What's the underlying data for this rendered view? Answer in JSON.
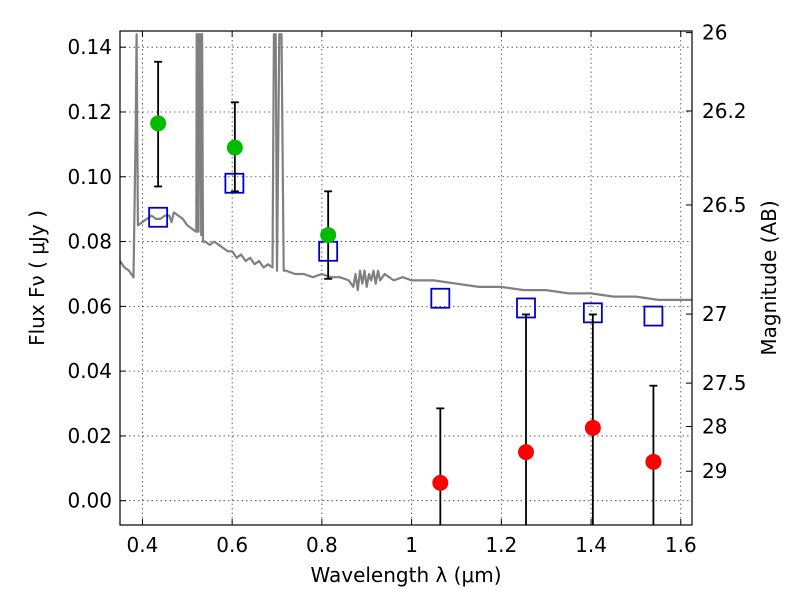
{
  "chart_data": {
    "type": "scatter",
    "xlabel": "Wavelength  λ (μm)",
    "ylabel": "Flux  Fν  ( μJy )",
    "ylabel_right": "Magnitude (AB)",
    "xlim": [
      0.35,
      1.625
    ],
    "ylim": [
      -0.0075,
      0.145
    ],
    "grid": true,
    "x_ticks": [
      0.4,
      0.6,
      0.8,
      1.0,
      1.2,
      1.4,
      1.6
    ],
    "x_tick_labels": [
      "0.4",
      "0.6",
      "0.8",
      "1",
      "1.2",
      "1.4",
      "1.6"
    ],
    "y_ticks": [
      0.0,
      0.02,
      0.04,
      0.06,
      0.08,
      0.1,
      0.12,
      0.14
    ],
    "y_tick_labels": [
      "0.00",
      "0.02",
      "0.04",
      "0.06",
      "0.08",
      "0.10",
      "0.12",
      "0.14"
    ],
    "right_ticks": [
      {
        "label": "26",
        "flux": 0.1445
      },
      {
        "label": "26.2",
        "flux": 0.1203
      },
      {
        "label": "26.5",
        "flux": 0.0913
      },
      {
        "label": "27",
        "flux": 0.0576
      },
      {
        "label": "27.5",
        "flux": 0.0363
      },
      {
        "label": "28",
        "flux": 0.0229
      },
      {
        "label": "29",
        "flux": 0.0091
      }
    ],
    "model_spectrum": {
      "color": "#808080",
      "points": [
        [
          0.35,
          0.074
        ],
        [
          0.36,
          0.072
        ],
        [
          0.37,
          0.071
        ],
        [
          0.375,
          0.07
        ],
        [
          0.38,
          0.069
        ],
        [
          0.385,
          0.115
        ],
        [
          0.387,
          0.144
        ],
        [
          0.39,
          0.085
        ],
        [
          0.4,
          0.086
        ],
        [
          0.41,
          0.087
        ],
        [
          0.42,
          0.088
        ],
        [
          0.43,
          0.087
        ],
        [
          0.44,
          0.087
        ],
        [
          0.45,
          0.088
        ],
        [
          0.46,
          0.088
        ],
        [
          0.465,
          0.086
        ],
        [
          0.47,
          0.089
        ],
        [
          0.48,
          0.088
        ],
        [
          0.49,
          0.087
        ],
        [
          0.5,
          0.085
        ],
        [
          0.51,
          0.084
        ],
        [
          0.52,
          0.083
        ],
        [
          0.521,
          0.144
        ],
        [
          0.523,
          0.144
        ],
        [
          0.525,
          0.083
        ],
        [
          0.527,
          0.144
        ],
        [
          0.529,
          0.144
        ],
        [
          0.531,
          0.082
        ],
        [
          0.533,
          0.144
        ],
        [
          0.535,
          0.08
        ],
        [
          0.54,
          0.08
        ],
        [
          0.55,
          0.079
        ],
        [
          0.56,
          0.08
        ],
        [
          0.57,
          0.079
        ],
        [
          0.58,
          0.078
        ],
        [
          0.59,
          0.077
        ],
        [
          0.6,
          0.077
        ],
        [
          0.61,
          0.075
        ],
        [
          0.62,
          0.076
        ],
        [
          0.63,
          0.074
        ],
        [
          0.64,
          0.075
        ],
        [
          0.65,
          0.073
        ],
        [
          0.66,
          0.074
        ],
        [
          0.67,
          0.072
        ],
        [
          0.68,
          0.073
        ],
        [
          0.69,
          0.072
        ],
        [
          0.693,
          0.144
        ],
        [
          0.697,
          0.144
        ],
        [
          0.7,
          0.071
        ],
        [
          0.705,
          0.144
        ],
        [
          0.71,
          0.144
        ],
        [
          0.715,
          0.071
        ],
        [
          0.72,
          0.071
        ],
        [
          0.74,
          0.07
        ],
        [
          0.76,
          0.07
        ],
        [
          0.78,
          0.069
        ],
        [
          0.8,
          0.07
        ],
        [
          0.82,
          0.069
        ],
        [
          0.84,
          0.069
        ],
        [
          0.86,
          0.068
        ],
        [
          0.87,
          0.066
        ],
        [
          0.875,
          0.07
        ],
        [
          0.88,
          0.065
        ],
        [
          0.885,
          0.071
        ],
        [
          0.89,
          0.067
        ],
        [
          0.895,
          0.071
        ],
        [
          0.9,
          0.066
        ],
        [
          0.905,
          0.07
        ],
        [
          0.91,
          0.068
        ],
        [
          0.915,
          0.071
        ],
        [
          0.92,
          0.067
        ],
        [
          0.925,
          0.071
        ],
        [
          0.93,
          0.068
        ],
        [
          0.94,
          0.07
        ],
        [
          0.96,
          0.068
        ],
        [
          0.98,
          0.069
        ],
        [
          1.0,
          0.068
        ],
        [
          1.05,
          0.068
        ],
        [
          1.1,
          0.067
        ],
        [
          1.15,
          0.066
        ],
        [
          1.2,
          0.066
        ],
        [
          1.25,
          0.065
        ],
        [
          1.3,
          0.065
        ],
        [
          1.35,
          0.064
        ],
        [
          1.4,
          0.064
        ],
        [
          1.45,
          0.063
        ],
        [
          1.5,
          0.063
        ],
        [
          1.55,
          0.062
        ],
        [
          1.6,
          0.062
        ],
        [
          1.625,
          0.062
        ]
      ]
    },
    "series": [
      {
        "marker": "open-square",
        "color": "#0000cc",
        "points": [
          {
            "x": 0.435,
            "y": 0.0875
          },
          {
            "x": 0.605,
            "y": 0.098
          },
          {
            "x": 0.814,
            "y": 0.077
          },
          {
            "x": 1.064,
            "y": 0.0625
          },
          {
            "x": 1.255,
            "y": 0.0595
          },
          {
            "x": 1.404,
            "y": 0.058
          },
          {
            "x": 1.539,
            "y": 0.057
          }
        ]
      },
      {
        "marker": "filled-circle",
        "color": "#00bb00",
        "points": [
          {
            "x": 0.435,
            "y": 0.1165,
            "yerr_low": 0.097,
            "yerr_high": 0.1355
          },
          {
            "x": 0.606,
            "y": 0.109,
            "yerr_low": 0.0955,
            "yerr_high": 0.123
          },
          {
            "x": 0.814,
            "y": 0.082,
            "yerr_low": 0.0685,
            "yerr_high": 0.0955
          }
        ]
      },
      {
        "marker": "filled-circle",
        "color": "#ff0000",
        "points": [
          {
            "x": 1.064,
            "y": 0.0055,
            "yerr_low": -0.0075,
            "yerr_high": 0.0285
          },
          {
            "x": 1.255,
            "y": 0.015,
            "yerr_low": -0.0075,
            "yerr_high": 0.0575
          },
          {
            "x": 1.404,
            "y": 0.0225,
            "yerr_low": -0.0075,
            "yerr_high": 0.0575
          },
          {
            "x": 1.539,
            "y": 0.012,
            "yerr_low": -0.0075,
            "yerr_high": 0.0355
          }
        ]
      }
    ]
  }
}
